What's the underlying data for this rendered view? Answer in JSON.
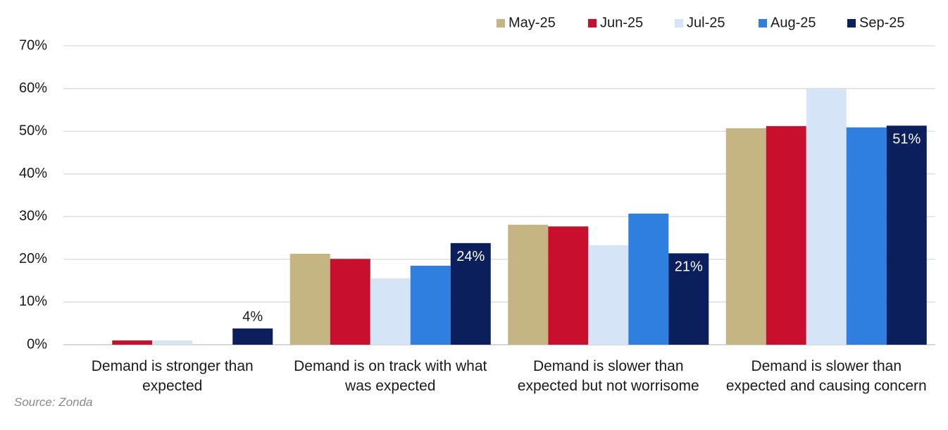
{
  "chart_data": {
    "type": "bar",
    "categories": [
      "Demand is stronger than expected",
      "Demand is on track with what was expected",
      "Demand is slower than expected but not worrisome",
      "Demand is slower than expected and causing concern"
    ],
    "series": [
      {
        "name": "May-25",
        "color": "#c4b583",
        "values": [
          0,
          21.3,
          28.1,
          50.7
        ]
      },
      {
        "name": "Jun-25",
        "color": "#c8102e",
        "values": [
          1.0,
          20.1,
          27.7,
          51.2
        ]
      },
      {
        "name": "Jul-25",
        "color": "#d6e4f7",
        "values": [
          1.0,
          15.5,
          23.3,
          59.9
        ]
      },
      {
        "name": "Aug-25",
        "color": "#2e7fe0",
        "values": [
          0,
          18.5,
          30.7,
          50.9
        ]
      },
      {
        "name": "Sep-25",
        "color": "#0a1f5c",
        "values": [
          3.8,
          23.8,
          21.4,
          51.3
        ],
        "value_labels": [
          "4%",
          "24%",
          "21%",
          "51%"
        ]
      }
    ],
    "ylim": [
      0,
      70
    ],
    "yticks": [
      {
        "value": 0,
        "label": "0%"
      },
      {
        "value": 10,
        "label": "10%"
      },
      {
        "value": 20,
        "label": "20%"
      },
      {
        "value": 30,
        "label": "30%"
      },
      {
        "value": 40,
        "label": "40%"
      },
      {
        "value": 50,
        "label": "50%"
      },
      {
        "value": 60,
        "label": "60%"
      },
      {
        "value": 70,
        "label": "70%"
      }
    ],
    "grid": true,
    "legend": "top-right",
    "source": "Source: Zonda"
  }
}
